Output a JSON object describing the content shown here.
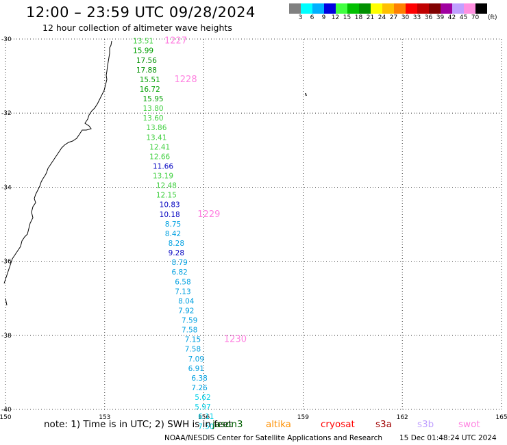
{
  "title": "12:00 – 23:59 UTC 09/28/2024",
  "subtitle": "12 hour collection of altimeter wave heights",
  "colorbar": {
    "unit": "(ft)",
    "colors": [
      "#808080",
      "#00ffff",
      "#00b0ff",
      "#0000e0",
      "#40ff40",
      "#00c000",
      "#009000",
      "#ffff00",
      "#ffc000",
      "#ff8000",
      "#ff0000",
      "#c00000",
      "#800000",
      "#a000a0",
      "#c0a0ff",
      "#ff90e0",
      "#000000"
    ],
    "labels": [
      "3",
      "6",
      "9",
      "12",
      "15",
      "18",
      "21",
      "24",
      "27",
      "30",
      "33",
      "36",
      "39",
      "42",
      "45",
      "70"
    ]
  },
  "map": {
    "lon_range": [
      150,
      165
    ],
    "lat_range": [
      -40,
      -30
    ],
    "x_ticks": [
      "150",
      "153",
      "156",
      "159",
      "162",
      "165"
    ],
    "y_ticks": [
      "-30",
      "-32",
      "-34",
      "-36",
      "-38",
      "-40"
    ],
    "grid": "dotted",
    "coastline_color": "#000000"
  },
  "chart_data": {
    "type": "scatter",
    "title": "12 hour collection of altimeter wave heights",
    "x_label": "",
    "y_label": "",
    "unit": "ft",
    "points": [
      {
        "lon": 154.0,
        "lat": -30.03,
        "value": 13.51,
        "color": "#40d040"
      },
      {
        "lon": 154.0,
        "lat": -30.29,
        "value": 15.99,
        "color": "#00a000"
      },
      {
        "lon": 154.1,
        "lat": -30.55,
        "value": 17.56,
        "color": "#009000"
      },
      {
        "lon": 154.1,
        "lat": -30.81,
        "value": 17.88,
        "color": "#009000"
      },
      {
        "lon": 154.2,
        "lat": -31.07,
        "value": 15.51,
        "color": "#00a000"
      },
      {
        "lon": 154.2,
        "lat": -31.33,
        "value": 16.72,
        "color": "#00a000"
      },
      {
        "lon": 154.3,
        "lat": -31.59,
        "value": 15.95,
        "color": "#00a000"
      },
      {
        "lon": 154.3,
        "lat": -31.85,
        "value": 13.8,
        "color": "#40d040"
      },
      {
        "lon": 154.3,
        "lat": -32.11,
        "value": 13.6,
        "color": "#40d040"
      },
      {
        "lon": 154.4,
        "lat": -32.37,
        "value": 13.86,
        "color": "#40d040"
      },
      {
        "lon": 154.4,
        "lat": -32.63,
        "value": 13.41,
        "color": "#40d040"
      },
      {
        "lon": 154.5,
        "lat": -32.89,
        "value": 12.41,
        "color": "#40d040"
      },
      {
        "lon": 154.5,
        "lat": -33.15,
        "value": 12.66,
        "color": "#40d040"
      },
      {
        "lon": 154.6,
        "lat": -33.41,
        "value": 11.66,
        "color": "#0000c0"
      },
      {
        "lon": 154.6,
        "lat": -33.67,
        "value": 13.19,
        "color": "#40d040"
      },
      {
        "lon": 154.7,
        "lat": -33.93,
        "value": 12.48,
        "color": "#40d040"
      },
      {
        "lon": 154.7,
        "lat": -34.19,
        "value": 12.15,
        "color": "#40d040"
      },
      {
        "lon": 154.8,
        "lat": -34.45,
        "value": 10.83,
        "color": "#0000c0"
      },
      {
        "lon": 154.8,
        "lat": -34.71,
        "value": 10.18,
        "color": "#0000c0"
      },
      {
        "lon": 154.9,
        "lat": -34.97,
        "value": 8.75,
        "color": "#00a0e0"
      },
      {
        "lon": 154.9,
        "lat": -35.23,
        "value": 8.42,
        "color": "#00a0e0"
      },
      {
        "lon": 155.0,
        "lat": -35.49,
        "value": 8.28,
        "color": "#00a0e0"
      },
      {
        "lon": 155.0,
        "lat": -35.75,
        "value": 9.28,
        "color": "#0000c0"
      },
      {
        "lon": 155.1,
        "lat": -36.01,
        "value": 8.79,
        "color": "#00a0e0"
      },
      {
        "lon": 155.1,
        "lat": -36.27,
        "value": 6.82,
        "color": "#00a0e0"
      },
      {
        "lon": 155.2,
        "lat": -36.53,
        "value": 6.58,
        "color": "#00a0e0"
      },
      {
        "lon": 155.2,
        "lat": -36.79,
        "value": 7.13,
        "color": "#00a0e0"
      },
      {
        "lon": 155.3,
        "lat": -37.05,
        "value": 8.04,
        "color": "#00a0e0"
      },
      {
        "lon": 155.3,
        "lat": -37.31,
        "value": 7.92,
        "color": "#00a0e0"
      },
      {
        "lon": 155.4,
        "lat": -37.57,
        "value": 7.59,
        "color": "#00a0e0"
      },
      {
        "lon": 155.4,
        "lat": -37.83,
        "value": 7.58,
        "color": "#00a0e0"
      },
      {
        "lon": 155.5,
        "lat": -38.09,
        "value": 7.15,
        "color": "#00a0e0"
      },
      {
        "lon": 155.5,
        "lat": -38.35,
        "value": 7.58,
        "color": "#00a0e0"
      },
      {
        "lon": 155.6,
        "lat": -38.61,
        "value": 7.09,
        "color": "#00a0e0"
      },
      {
        "lon": 155.6,
        "lat": -38.87,
        "value": 6.91,
        "color": "#00a0e0"
      },
      {
        "lon": 155.7,
        "lat": -39.13,
        "value": 6.38,
        "color": "#00a0e0"
      },
      {
        "lon": 155.7,
        "lat": -39.39,
        "value": 7.26,
        "color": "#00a0e0"
      },
      {
        "lon": 155.8,
        "lat": -39.65,
        "value": 5.62,
        "color": "#00d0e8"
      },
      {
        "lon": 155.8,
        "lat": -39.91,
        "value": 5.97,
        "color": "#00d0e8"
      },
      {
        "lon": 155.9,
        "lat": -40.17,
        "value": 6.11,
        "color": "#00d0e8"
      },
      {
        "lon": 155.9,
        "lat": -40.43,
        "value": 7.5,
        "color": "#00d0e8"
      }
    ],
    "time_labels": [
      {
        "label": "1227",
        "lon": 154.6,
        "lat": -30.03
      },
      {
        "label": "1228",
        "lon": 154.9,
        "lat": -31.07
      },
      {
        "label": "1229",
        "lon": 155.6,
        "lat": -34.71
      },
      {
        "label": "1230",
        "lon": 156.4,
        "lat": -38.09
      }
    ],
    "time_label_color": "#ff80e0"
  },
  "footer": {
    "note": "note:  1) Time is in UTC; 2) SWH is in feet",
    "satellites": [
      {
        "name": "jason3",
        "color": "#006000"
      },
      {
        "name": "altika",
        "color": "#ff9000"
      },
      {
        "name": "cryosat",
        "color": "#ff0000"
      },
      {
        "name": "s3a",
        "color": "#a00000"
      },
      {
        "name": "s3b",
        "color": "#c0a0ff"
      },
      {
        "name": "swot",
        "color": "#ff80e0"
      }
    ],
    "credit": "NOAA/NESDIS Center for Satellite Applications and Research",
    "generated": "15 Dec 01:48:24 UTC 2024"
  }
}
